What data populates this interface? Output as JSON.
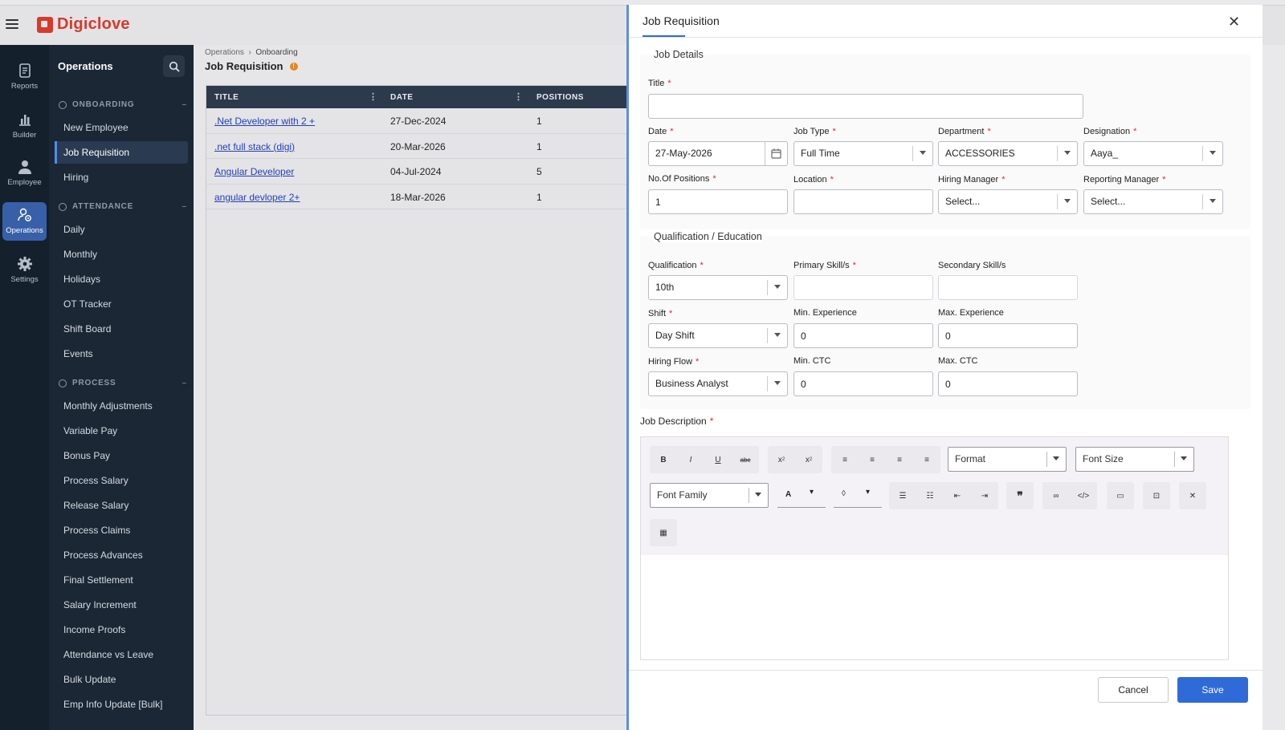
{
  "app": {
    "brand": "Digiclove"
  },
  "rail": [
    {
      "label": "Reports",
      "icon": "reports-icon"
    },
    {
      "label": "Builder",
      "icon": "chart-icon"
    },
    {
      "label": "Employee",
      "icon": "user-icon"
    },
    {
      "label": "Operations",
      "icon": "operations-icon"
    },
    {
      "label": "Settings",
      "icon": "gear-icon"
    }
  ],
  "sidebar": {
    "title": "Operations",
    "sections": [
      {
        "label": "ONBOARDING",
        "items": [
          "New Employee",
          "Job Requisition",
          "Hiring"
        ]
      },
      {
        "label": "ATTENDANCE",
        "items": [
          "Daily",
          "Monthly",
          "Holidays",
          "OT Tracker",
          "Shift Board",
          "Events"
        ]
      },
      {
        "label": "PROCESS",
        "items": [
          "Monthly Adjustments",
          "Variable Pay",
          "Bonus Pay",
          "Process Salary",
          "Release Salary",
          "Process Claims",
          "Process Advances",
          "Final Settlement",
          "Salary Increment",
          "Income Proofs",
          "Attendance vs Leave",
          "Bulk Update",
          "Emp Info Update [Bulk]"
        ]
      }
    ],
    "active": "Job Requisition"
  },
  "main": {
    "breadcrumb": [
      "Operations",
      "Onboarding"
    ],
    "title": "Job Requisition",
    "columns": [
      "TITLE",
      "DATE",
      "POSITIONS"
    ],
    "rows": [
      {
        "title": ".Net Developer with 2 +",
        "date": "27-Dec-2024",
        "positions": "1"
      },
      {
        "title": ".net full stack (digi)",
        "date": "20-Mar-2026",
        "positions": "1"
      },
      {
        "title": "Angular Developer",
        "date": "04-Jul-2024",
        "positions": "5"
      },
      {
        "title": "angular devloper 2+",
        "date": "18-Mar-2026",
        "positions": "1"
      }
    ]
  },
  "panel": {
    "tab": "Job Requisition",
    "job_details": {
      "heading": "Job Details",
      "title_label": "Title",
      "title_value": "",
      "date_label": "Date",
      "date_value": "27-May-2026",
      "job_type_label": "Job Type",
      "job_type_value": "Full Time",
      "department_label": "Department",
      "department_value": "ACCESSORIES",
      "designation_label": "Designation",
      "designation_value": "Aaya_",
      "positions_label": "No.Of Positions",
      "positions_value": "1",
      "location_label": "Location",
      "location_value": "",
      "hiring_manager_label": "Hiring Manager",
      "hiring_manager_value": "Select...",
      "reporting_manager_label": "Reporting Manager",
      "reporting_manager_value": "Select..."
    },
    "qualification": {
      "heading": "Qualification / Education",
      "qualification_label": "Qualification",
      "qualification_value": "10th",
      "primary_label": "Primary Skill/s",
      "primary_value": "",
      "secondary_label": "Secondary Skill/s",
      "secondary_value": "",
      "shift_label": "Shift",
      "shift_value": "Day Shift",
      "min_exp_label": "Min. Experience",
      "min_exp_value": "0",
      "max_exp_label": "Max. Experience",
      "max_exp_value": "0",
      "hiring_flow_label": "Hiring Flow",
      "hiring_flow_value": "Business Analyst",
      "min_ctc_label": "Min. CTC",
      "min_ctc_value": "0",
      "max_ctc_label": "Max. CTC",
      "max_ctc_value": "0"
    },
    "editor": {
      "label": "Job Description",
      "format": "Format",
      "font_size": "Font Size",
      "font_family": "Font Family"
    },
    "cancel": "Cancel",
    "save": "Save"
  }
}
